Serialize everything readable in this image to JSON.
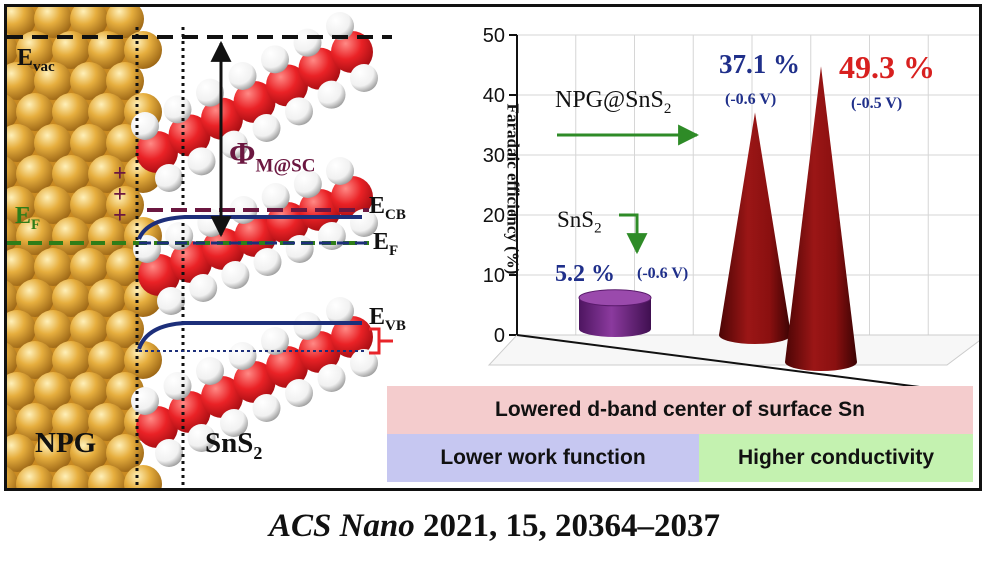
{
  "band_diagram": {
    "evac": "E",
    "evac_sub": "vac",
    "ef_metal": "E",
    "ef_metal_sub": "F",
    "plus_marks": [
      "+",
      "+",
      "+"
    ],
    "phi_symbol": "Φ",
    "phi_sub": "M@SC",
    "ecb": "E",
    "ecb_sub": "CB",
    "ef_sc": "E",
    "ef_sc_sub": "F",
    "evb": "E",
    "evb_sub": "VB",
    "npg_label": "NPG",
    "sns2_label": "SnS",
    "sns2_sub": "2",
    "colors": {
      "gold": "#e2a938",
      "red": "#e8242a",
      "navy": "#1d2f7a",
      "maroon": "#6b1740",
      "green": "#2f7d18"
    }
  },
  "chart_data": {
    "type": "bar",
    "style": "3d-cones",
    "ylabel": "Faradaic efficiency (%)",
    "ylim": [
      0,
      50
    ],
    "yticks": [
      "0",
      "10",
      "20",
      "30",
      "40",
      "50"
    ],
    "grid": true,
    "series": [
      {
        "name": "SnS2",
        "value": 5.2,
        "value_label": "5.2 %",
        "potential": "(-0.6 V)",
        "shape": "cylinder",
        "color": "#7b2a8c"
      },
      {
        "name": "NPG@SnS2",
        "value": 37.1,
        "value_label": "37.1 %",
        "potential": "(-0.6 V)",
        "shape": "cone",
        "color": "#8f1010"
      },
      {
        "name": "NPG@SnS2",
        "value": 49.3,
        "value_label": "49.3 %",
        "potential": "(-0.5 V)",
        "shape": "cone",
        "color": "#8f1010"
      }
    ],
    "annotations": {
      "npg_sns2": "NPG@SnS",
      "npg_sns2_sub": "2",
      "sns2": "SnS",
      "sns2_sub": "2"
    },
    "label_colors": {
      "navy": "#1f2f8a",
      "red": "#d8201f",
      "arrow": "#2e8b27"
    }
  },
  "banners": {
    "top": "Lowered  d-band center of surface Sn",
    "left": "Lower  work  function",
    "right": "Higher conductivity",
    "colors": {
      "top": "#f4cccd",
      "left": "#c6c7f1",
      "right": "#c4f2b0"
    }
  },
  "citation": {
    "journal": "ACS Nano",
    "rest": " 2021, 15, 20364–2037"
  }
}
